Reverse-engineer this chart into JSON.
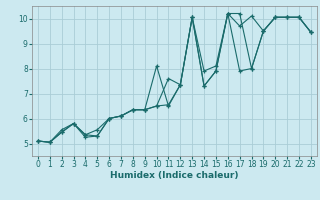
{
  "xlabel": "Humidex (Indice chaleur)",
  "ylabel": "",
  "bg_color": "#cce9f0",
  "grid_color": "#aacdd6",
  "line_color": "#1a6b6b",
  "xlim": [
    -0.5,
    23.5
  ],
  "ylim": [
    4.5,
    10.5
  ],
  "yticks": [
    5,
    6,
    7,
    8,
    9,
    10
  ],
  "xticks": [
    0,
    1,
    2,
    3,
    4,
    5,
    6,
    7,
    8,
    9,
    10,
    11,
    12,
    13,
    14,
    15,
    16,
    17,
    18,
    19,
    20,
    21,
    22,
    23
  ],
  "lines": [
    {
      "x": [
        0,
        1,
        2,
        3,
        4,
        5,
        6,
        7,
        8,
        9,
        10,
        11,
        12,
        13,
        14,
        15,
        16,
        17,
        18,
        19,
        20,
        21,
        22,
        23
      ],
      "y": [
        5.1,
        5.05,
        5.45,
        5.8,
        5.25,
        5.3,
        6.0,
        6.1,
        6.35,
        6.35,
        6.5,
        6.55,
        7.35,
        10.05,
        7.3,
        7.9,
        10.2,
        7.9,
        8.0,
        9.5,
        10.05,
        10.05,
        10.05,
        9.45
      ]
    },
    {
      "x": [
        0,
        1,
        2,
        3,
        4,
        5,
        6,
        7,
        8,
        9,
        10,
        11,
        12,
        13,
        14,
        15,
        16,
        17,
        18,
        19,
        20,
        21,
        22,
        23
      ],
      "y": [
        5.1,
        5.05,
        5.45,
        5.8,
        5.35,
        5.3,
        6.0,
        6.1,
        6.35,
        6.35,
        8.1,
        6.5,
        7.35,
        10.05,
        7.3,
        7.9,
        10.2,
        9.7,
        10.1,
        9.5,
        10.05,
        10.05,
        10.05,
        9.45
      ]
    },
    {
      "x": [
        0,
        1,
        2,
        3,
        4,
        5,
        6,
        7,
        8,
        9,
        10,
        11,
        12,
        13,
        14,
        15,
        16,
        17,
        18,
        19,
        20,
        21,
        22,
        23
      ],
      "y": [
        5.1,
        5.05,
        5.55,
        5.8,
        5.35,
        5.55,
        6.0,
        6.1,
        6.35,
        6.35,
        6.5,
        7.6,
        7.35,
        10.05,
        7.9,
        8.1,
        10.2,
        10.2,
        8.0,
        9.5,
        10.05,
        10.05,
        10.05,
        9.45
      ]
    }
  ]
}
